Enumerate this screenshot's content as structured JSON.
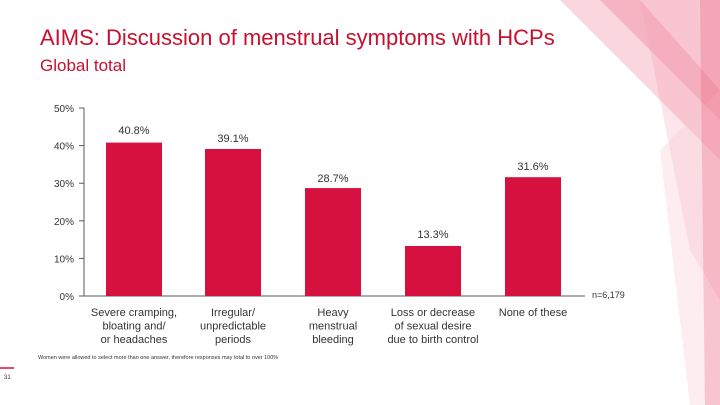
{
  "title": "AIMS: Discussion of menstrual symptoms with HCPs",
  "subtitle": "Global total",
  "footnote": "Women were allowed to select more than one answer, therefore responses may total to over 100%",
  "sample_size": "n=6,179",
  "page_number": "31",
  "colors": {
    "bar": "#d6103f",
    "accent": "#c8102e",
    "axis": "#595959"
  },
  "chart_data": {
    "type": "bar",
    "categories": [
      "Severe cramping,\nbloating and/\nor headaches",
      "Irregular/\nunpredictable\nperiods",
      "Heavy\nmenstrual\nbleeding",
      "Loss or decrease\nof sexual desire\ndue to birth control",
      "None of these"
    ],
    "values": [
      40.8,
      39.1,
      28.7,
      13.3,
      31.6
    ],
    "data_labels": [
      "40.8%",
      "39.1%",
      "28.7%",
      "13.3%",
      "31.6%"
    ],
    "y_ticks": [
      0,
      10,
      20,
      30,
      40,
      50
    ],
    "y_tick_labels": [
      "0%",
      "10%",
      "20%",
      "30%",
      "40%",
      "50%"
    ],
    "ylim": [
      0,
      50
    ],
    "grid": false,
    "legend": "none"
  }
}
